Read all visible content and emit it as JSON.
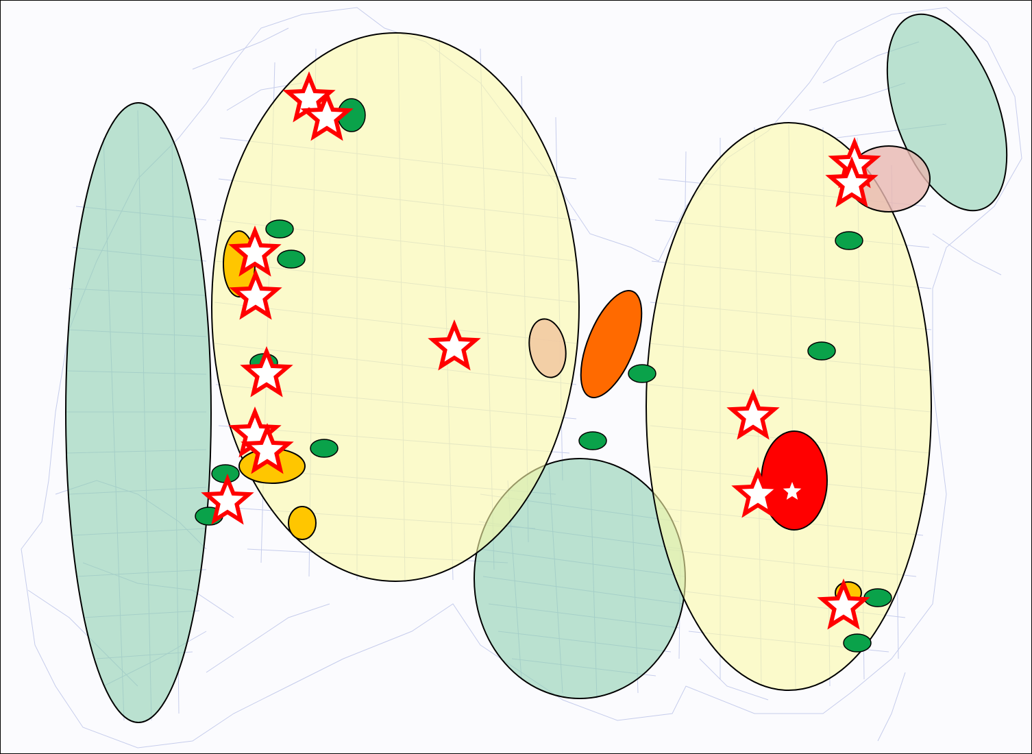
{
  "map": {
    "colors": {
      "background": "#fbfbfe",
      "cadastral_lines": "#9aa6dc",
      "zone_green": "#8fd1b0",
      "zone_yellow": "#fbfaa8",
      "zone_orange": "#ff6a00",
      "zone_red": "#ff0000",
      "zone_amber": "#ffc600",
      "zone_tan": "#f1c7a0",
      "zone_pink": "#e8b8b0",
      "small_green": "#0aa24a",
      "star_fill": "#ffffff",
      "star_stroke": "#ff0000"
    },
    "legend": [],
    "title": ""
  }
}
